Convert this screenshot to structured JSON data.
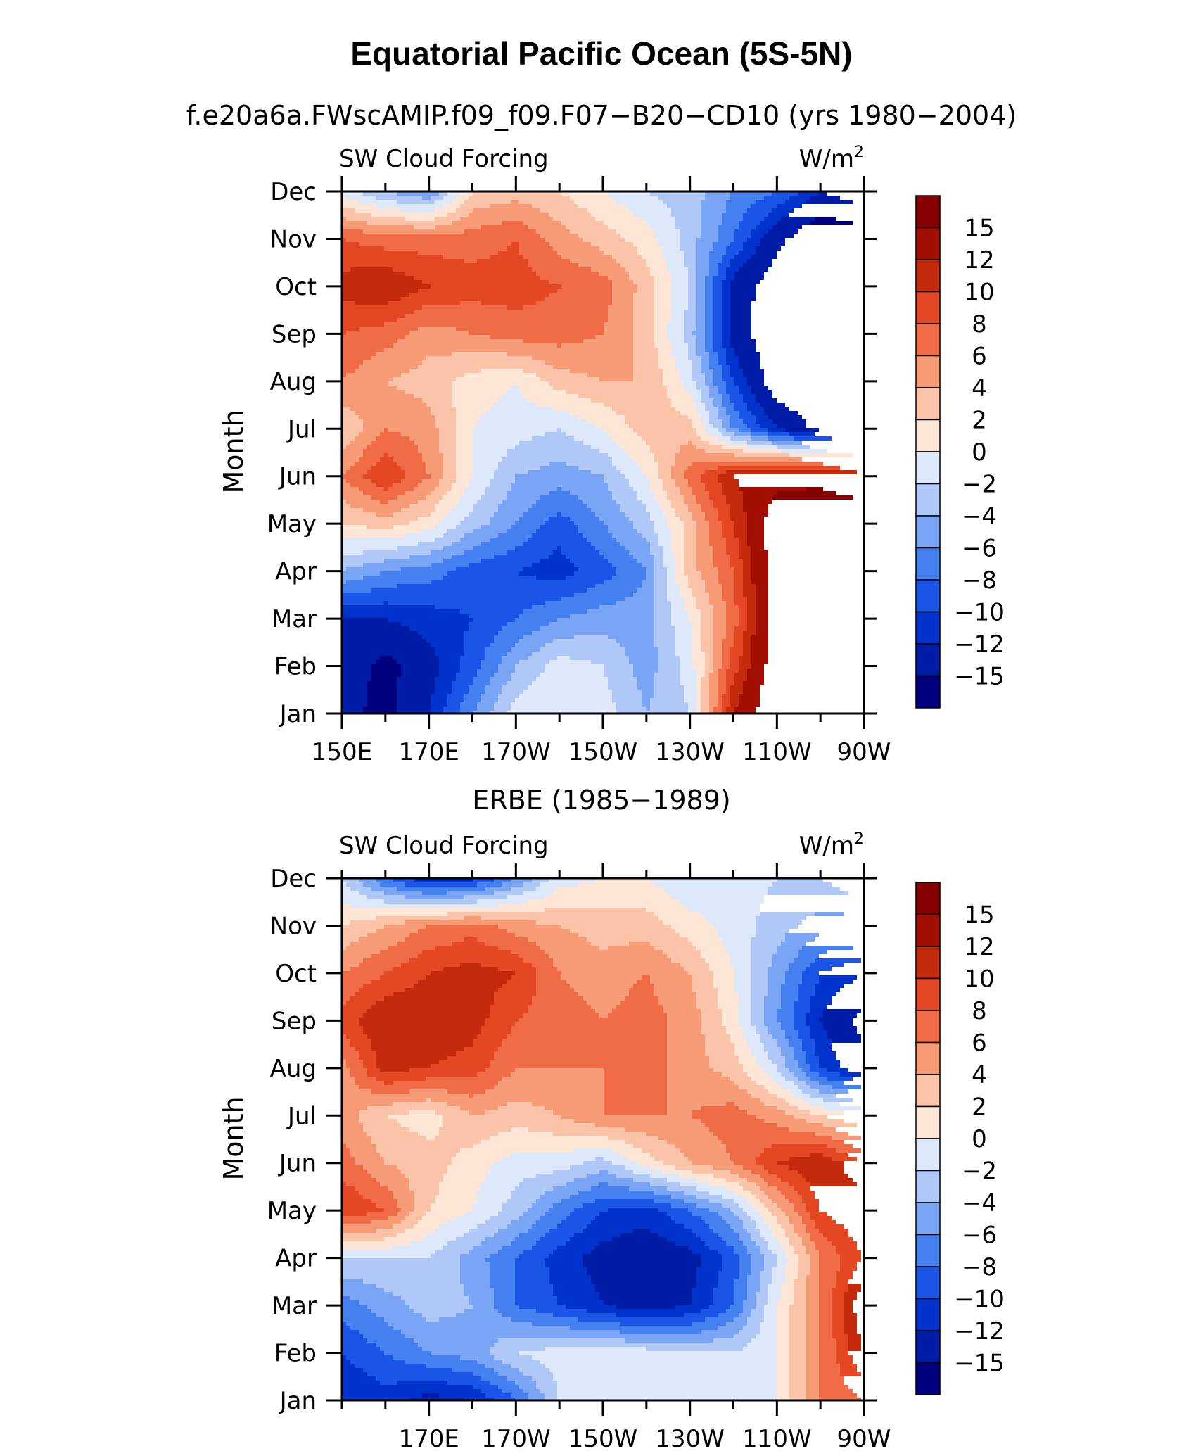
{
  "figure": {
    "title": "Equatorial Pacific Ocean (5S-5N)"
  },
  "palette": {
    "levels": [
      -15,
      -12,
      -10,
      -8,
      -6,
      -4,
      -2,
      0,
      2,
      4,
      6,
      8,
      10,
      12,
      15
    ],
    "colors": [
      "#00007f",
      "#001ba6",
      "#0033cc",
      "#1a55e8",
      "#4480f0",
      "#7aa4f4",
      "#b0c8f8",
      "#dde9fb",
      "#fde6d6",
      "#fbc4a8",
      "#f79b76",
      "#ef6c47",
      "#e34724",
      "#c42a0c",
      "#a20e02",
      "#870000"
    ]
  },
  "chart_data": [
    {
      "type": "heatmap",
      "title": "f.e20a6a.FWscAMIP.f09_f09.F07−B20−CD10 (yrs 1980−2004)",
      "variable": "SW Cloud Forcing",
      "units_base": "W/m",
      "units_exp": "2",
      "ylabel": "Month",
      "xlabel": "",
      "x": [
        150,
        160,
        170,
        180,
        190,
        200,
        210,
        220,
        230,
        240,
        250,
        260,
        270
      ],
      "xticklabels": [
        "150E",
        "170E",
        "170W",
        "150W",
        "130W",
        "110W",
        "90W"
      ],
      "xtick_values": [
        150,
        170,
        190,
        210,
        230,
        250,
        270
      ],
      "y": [
        "Jan",
        "Feb",
        "Mar",
        "Apr",
        "May",
        "Jun",
        "Jul",
        "Aug",
        "Sep",
        "Oct",
        "Nov",
        "Dec"
      ],
      "colorbar_labels": [
        "15",
        "12",
        "10",
        "8",
        "6",
        "4",
        "2",
        "0",
        "−2",
        "−4",
        "−6",
        "−8",
        "−10",
        "−12",
        "−15"
      ],
      "values": [
        [
          -14,
          -16,
          -12,
          -6,
          -1,
          0,
          -1,
          -4,
          -2,
          12,
          18,
          18,
          18
        ],
        [
          -13,
          -16,
          -13,
          -9,
          -4,
          -1,
          -2,
          -5,
          -1,
          9,
          17,
          18,
          18
        ],
        [
          -12,
          -12,
          -11,
          -10,
          -8,
          -6,
          -5,
          -5,
          0,
          7,
          17,
          18,
          18
        ],
        [
          -4,
          -6,
          -7,
          -9,
          -10,
          -11,
          -9,
          -6,
          3,
          8,
          17,
          18,
          18
        ],
        [
          2,
          3,
          1,
          -3,
          -6,
          -9,
          -6,
          -3,
          3,
          10,
          17,
          18,
          18
        ],
        [
          6,
          10,
          6,
          0,
          -4,
          -5,
          -4,
          0,
          7,
          12,
          14,
          14,
          12
        ],
        [
          2,
          6,
          5,
          0,
          -1,
          -2,
          0,
          3,
          3,
          -6,
          -12,
          -16,
          -16
        ],
        [
          6,
          4,
          3,
          1,
          0,
          3,
          4,
          4,
          -1,
          -10,
          -17,
          -18,
          -18
        ],
        [
          8,
          7,
          5,
          6,
          7,
          7,
          6,
          3,
          -3,
          -13,
          -18,
          -18,
          -18
        ],
        [
          11,
          12,
          10,
          9,
          9,
          8,
          7,
          3,
          -2,
          -13,
          -17,
          -18,
          -18
        ],
        [
          8,
          7,
          7,
          7,
          8,
          5,
          3,
          1,
          -3,
          -8,
          -14,
          -18,
          -17
        ],
        [
          -1,
          -4,
          -6,
          2,
          3,
          2,
          0,
          -2,
          -3,
          -6,
          -8,
          -12,
          -10
        ]
      ]
    },
    {
      "type": "heatmap",
      "title": "ERBE (1985−1989)",
      "variable": "SW Cloud Forcing",
      "units_base": "W/m",
      "units_exp": "2",
      "ylabel": "Month",
      "xlabel": "",
      "x": [
        150,
        160,
        170,
        180,
        190,
        200,
        210,
        220,
        230,
        240,
        250,
        260,
        270
      ],
      "xticklabels": [
        "170E",
        "170W",
        "150W",
        "130W",
        "110W",
        "90W"
      ],
      "xtick_values": [
        170,
        190,
        210,
        230,
        250,
        270
      ],
      "y": [
        "Jan",
        "Feb",
        "Mar",
        "Apr",
        "May",
        "Jun",
        "Jul",
        "Aug",
        "Sep",
        "Oct",
        "Nov",
        "Dec"
      ],
      "colorbar_labels": [
        "15",
        "12",
        "10",
        "8",
        "6",
        "4",
        "2",
        "0",
        "−2",
        "−4",
        "−6",
        "−8",
        "−10",
        "−12",
        "−15"
      ],
      "values": [
        [
          -12,
          -11,
          -13,
          -12,
          -8,
          -2,
          0,
          0,
          -1,
          -2,
          0,
          6,
          8
        ],
        [
          -10,
          -8,
          -6,
          -5,
          -2,
          -1,
          -1,
          -1,
          -2,
          -2,
          0,
          6,
          12
        ],
        [
          -7,
          -5,
          -3,
          -4,
          -8,
          -10,
          -12,
          -13,
          -12,
          -8,
          0,
          6,
          14
        ],
        [
          -2,
          -2,
          -2,
          -5,
          -8,
          -11,
          -13,
          -14,
          -13,
          -9,
          -2,
          6,
          10
        ],
        [
          10,
          8,
          2,
          0,
          -3,
          -7,
          -10,
          -11,
          -8,
          -4,
          3,
          10,
          12
        ],
        [
          7,
          4,
          3,
          1,
          -1,
          -1,
          -3,
          1,
          4,
          6,
          10,
          12,
          8
        ],
        [
          5,
          2,
          1,
          4,
          3,
          4,
          6,
          6,
          6,
          7,
          5,
          2,
          0
        ],
        [
          5,
          11,
          10,
          9,
          6,
          6,
          6,
          7,
          5,
          3,
          -2,
          -10,
          -14
        ],
        [
          9,
          12,
          12,
          11,
          8,
          7,
          6,
          7,
          5,
          1,
          -6,
          -12,
          -16
        ],
        [
          6,
          8,
          10,
          11,
          10,
          6,
          5,
          6,
          4,
          0,
          -5,
          -10,
          -12
        ],
        [
          2,
          4,
          6,
          7,
          5,
          4,
          3,
          3,
          1,
          -1,
          -3,
          -5,
          -5
        ],
        [
          -2,
          -8,
          -12,
          -11,
          -6,
          -1,
          0,
          0,
          -2,
          -1,
          -2,
          -2,
          0
        ]
      ]
    }
  ]
}
